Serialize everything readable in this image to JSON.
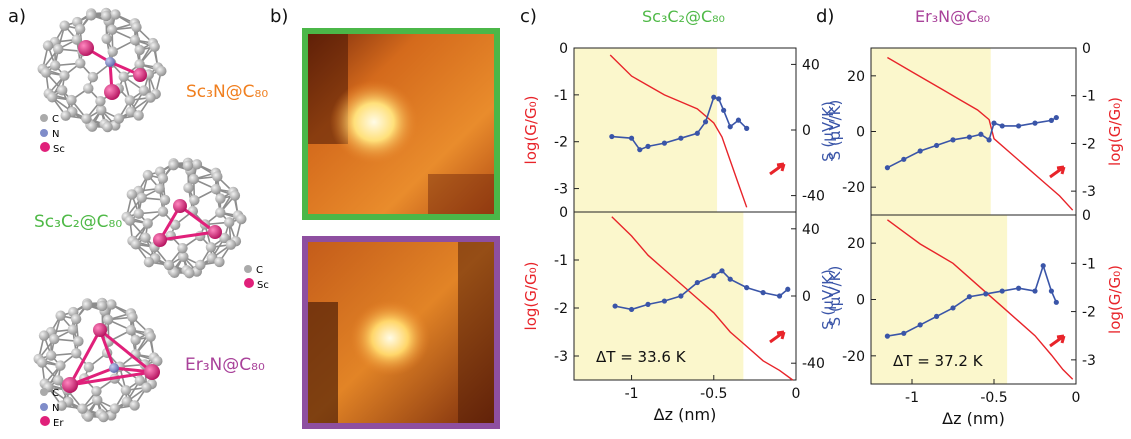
{
  "panels": {
    "a": "a)",
    "b": "b)",
    "c": "c)",
    "d": "d)"
  },
  "molecules": [
    {
      "label": "Sc₃N@C₈₀",
      "color": "#f07f1f",
      "legend": [
        "C",
        "N",
        "Sc"
      ]
    },
    {
      "label": "Sc₃C₂@C₈₀",
      "color": "#4fb947",
      "legend": [
        "C",
        "Sc"
      ]
    },
    {
      "label": "Er₃N@C₈₀",
      "color": "#a9429a",
      "legend": [
        "C",
        "N",
        "Er"
      ]
    }
  ],
  "colors": {
    "carbon": "#b5b5b5",
    "nitrogen": "#7f8cc9",
    "metal": "#e0207a",
    "green_border": "#4bb748",
    "purple_border": "#8e4fa0",
    "G": "#e8242a",
    "S": "#3a55a8",
    "highlight": "#fbf7cc"
  },
  "chart_data": [
    {
      "type": "line",
      "panel": "c",
      "title": "Sc₃C₂@C₈₀",
      "title_color": "#4fb947",
      "subplots": [
        {
          "position": "top",
          "xlim": [
            -1.35,
            0
          ],
          "ylim_left": [
            -3.5,
            0
          ],
          "ylim_right": [
            -50,
            50
          ],
          "left_label": "log(G/G₀)",
          "right_label": "S (μV/K)",
          "left_ticks": [
            "0",
            "-1",
            "-2",
            "-3"
          ],
          "right_ticks": [
            "40",
            "0",
            "-40"
          ],
          "highlight_x": [
            -1.35,
            -0.48
          ],
          "annotation": "",
          "series": [
            {
              "axis": "left",
              "color": "#e8242a",
              "x": [
                -1.13,
                -1.0,
                -0.9,
                -0.8,
                -0.7,
                -0.6,
                -0.5,
                -0.45,
                -0.4,
                -0.35,
                -0.3
              ],
              "y": [
                -0.15,
                -0.6,
                -0.8,
                -1.0,
                -1.15,
                -1.3,
                -1.6,
                -1.9,
                -2.4,
                -2.9,
                -3.4
              ]
            },
            {
              "axis": "right",
              "color": "#3a55a8",
              "x": [
                -1.12,
                -1.0,
                -0.95,
                -0.9,
                -0.8,
                -0.7,
                -0.6,
                -0.55,
                -0.5,
                -0.47,
                -0.44,
                -0.4,
                -0.35,
                -0.3
              ],
              "y": [
                -4,
                -5,
                -12,
                -10,
                -8,
                -5,
                -2,
                5,
                20,
                19,
                12,
                2,
                6,
                1
              ]
            }
          ]
        },
        {
          "position": "bottom",
          "xlim": [
            -1.35,
            0
          ],
          "ylim_left": [
            -3.5,
            0
          ],
          "ylim_right": [
            -50,
            50
          ],
          "left_label": "log(G/G₀)",
          "right_label": "S (μV/K)",
          "left_ticks": [
            "0",
            "-1",
            "-2",
            "-3"
          ],
          "right_ticks": [
            "40",
            "0",
            "-40"
          ],
          "highlight_x": [
            -1.35,
            -0.32
          ],
          "annotation": "ΔT = 33.6 K",
          "series": [
            {
              "axis": "left",
              "color": "#e8242a",
              "x": [
                -1.12,
                -1.0,
                -0.9,
                -0.8,
                -0.7,
                -0.6,
                -0.5,
                -0.4,
                -0.3,
                -0.2,
                -0.1,
                -0.02
              ],
              "y": [
                -0.1,
                -0.5,
                -0.9,
                -1.2,
                -1.5,
                -1.8,
                -2.1,
                -2.5,
                -2.8,
                -3.1,
                -3.3,
                -3.5
              ]
            },
            {
              "axis": "right",
              "color": "#3a55a8",
              "x": [
                -1.1,
                -1.0,
                -0.9,
                -0.8,
                -0.7,
                -0.6,
                -0.5,
                -0.45,
                -0.4,
                -0.3,
                -0.2,
                -0.1,
                -0.05
              ],
              "y": [
                -6,
                -8,
                -5,
                -3,
                0,
                8,
                12,
                15,
                10,
                5,
                2,
                0,
                4
              ]
            }
          ]
        }
      ],
      "xlabel": "Δz (nm)",
      "xticks": [
        "-1",
        "-0.5",
        "0"
      ]
    },
    {
      "type": "line",
      "panel": "d",
      "title": "Er₃N@C₈₀",
      "title_color": "#a9429a",
      "subplots": [
        {
          "position": "top",
          "xlim": [
            -1.25,
            0
          ],
          "ylim_left": [
            -30,
            30
          ],
          "ylim_right": [
            -3.5,
            0
          ],
          "left_label": "S (μV/K)",
          "right_label": "log(G/G₀)",
          "left_ticks": [
            "20",
            "0",
            "-20"
          ],
          "right_ticks": [
            "0",
            "-1",
            "-2",
            "-3"
          ],
          "highlight_x": [
            -1.25,
            -0.52
          ],
          "annotation": "",
          "series": [
            {
              "axis": "right",
              "color": "#e8242a",
              "x": [
                -1.15,
                -1.0,
                -0.9,
                -0.8,
                -0.7,
                -0.6,
                -0.53,
                -0.5,
                -0.4,
                -0.3,
                -0.2,
                -0.1,
                -0.02
              ],
              "y": [
                -0.2,
                -0.5,
                -0.7,
                -0.9,
                -1.1,
                -1.3,
                -1.5,
                -1.9,
                -2.2,
                -2.5,
                -2.8,
                -3.1,
                -3.4
              ]
            },
            {
              "axis": "left",
              "color": "#3a55a8",
              "x": [
                -1.15,
                -1.05,
                -0.95,
                -0.85,
                -0.75,
                -0.65,
                -0.58,
                -0.53,
                -0.5,
                -0.45,
                -0.35,
                -0.25,
                -0.15,
                -0.12
              ],
              "y": [
                -13,
                -10,
                -7,
                -5,
                -3,
                -2,
                -1,
                -3,
                3,
                2,
                2,
                3,
                4,
                5
              ]
            }
          ]
        },
        {
          "position": "bottom",
          "xlim": [
            -1.25,
            0
          ],
          "ylim_left": [
            -30,
            30
          ],
          "ylim_right": [
            -3.5,
            0
          ],
          "left_label": "S (μV/K)",
          "right_label": "log(G/G₀)",
          "left_ticks": [
            "20",
            "0",
            "-20"
          ],
          "right_ticks": [
            "0",
            "-1",
            "-2",
            "-3"
          ],
          "highlight_x": [
            -1.25,
            -0.42
          ],
          "annotation": "ΔT = 37.2 K",
          "series": [
            {
              "axis": "right",
              "color": "#e8242a",
              "x": [
                -1.15,
                -1.05,
                -0.95,
                -0.85,
                -0.75,
                -0.65,
                -0.55,
                -0.45,
                -0.35,
                -0.25,
                -0.15,
                -0.08,
                -0.02
              ],
              "y": [
                -0.1,
                -0.35,
                -0.6,
                -0.8,
                -1.0,
                -1.3,
                -1.6,
                -1.9,
                -2.2,
                -2.5,
                -2.9,
                -3.2,
                -3.4
              ]
            },
            {
              "axis": "left",
              "color": "#3a55a8",
              "x": [
                -1.15,
                -1.05,
                -0.95,
                -0.85,
                -0.75,
                -0.65,
                -0.55,
                -0.45,
                -0.35,
                -0.25,
                -0.2,
                -0.15,
                -0.12
              ],
              "y": [
                -13,
                -12,
                -9,
                -6,
                -3,
                1,
                2,
                3,
                4,
                3,
                12,
                3,
                -1
              ]
            }
          ]
        }
      ],
      "xlabel": "Δz (nm)",
      "xticks": [
        "-1",
        "-0.5",
        "0"
      ]
    }
  ]
}
